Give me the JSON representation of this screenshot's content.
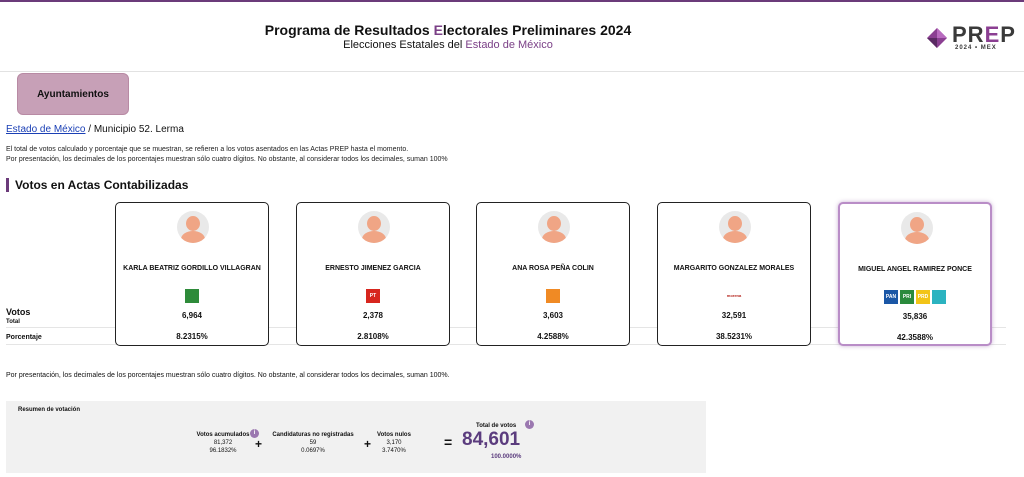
{
  "header": {
    "title_part1": "Programa de Resultados ",
    "title_accent": "E",
    "title_part2": "lectorales Preliminares 2024",
    "subtitle_part1": "Elecciones Estatales del ",
    "subtitle_accent": "Estado de México",
    "logo_text_a": "PR",
    "logo_text_e": "E",
    "logo_text_b": "P",
    "logo_sub": "2024 • MEX"
  },
  "tab": {
    "label": "Ayuntamientos"
  },
  "breadcrumb": {
    "link": "Estado de México",
    "separator": " / ",
    "current": "Municipio 52. Lerma"
  },
  "notes": {
    "line1": "El total de votos calculado y porcentaje que se muestran, se refieren a los votos asentados en las Actas PREP hasta el momento.",
    "line2": "Por presentación, los decimales de los porcentajes muestran sólo cuatro dígitos. No obstante, al considerar todos los decimales, suman 100%"
  },
  "section_title": "Votos en Actas Contabilizadas",
  "row_labels": {
    "votos": "Votos",
    "total": "Total",
    "porcentaje": "Porcentaje"
  },
  "candidates": [
    {
      "name": "KARLA BEATRIZ GORDILLO VILLAGRAN",
      "votes": "6,964",
      "pct": "8.2315%",
      "parties": [
        "pvem"
      ]
    },
    {
      "name": "ERNESTO JIMENEZ GARCIA",
      "votes": "2,378",
      "pct": "2.8108%",
      "parties": [
        "pt"
      ]
    },
    {
      "name": "ANA ROSA PEÑA COLIN",
      "votes": "3,603",
      "pct": "4.2588%",
      "parties": [
        "mc"
      ]
    },
    {
      "name": "MARGARITO GONZALEZ MORALES",
      "votes": "32,591",
      "pct": "38.5231%",
      "parties": [
        "morena"
      ]
    },
    {
      "name": "MIGUEL ANGEL RAMIREZ PONCE",
      "votes": "35,836",
      "pct": "42.3588%",
      "parties": [
        "pan",
        "pri",
        "prd",
        "nueva-alianza"
      ],
      "leading": true
    }
  ],
  "party_logos": {
    "pvem": {
      "label": "",
      "color": "#2e8b3a"
    },
    "pt": {
      "label": "PT",
      "color": "#d7261e"
    },
    "mc": {
      "label": "",
      "color": "#f08a24"
    },
    "morena": {
      "label": "morena",
      "color": "#b5261e"
    },
    "pan": {
      "label": "PAN",
      "color": "#1b57a6"
    },
    "pri": {
      "label": "PRI",
      "color": "#2a8a3c"
    },
    "prd": {
      "label": "PRD",
      "color": "#f2c417"
    },
    "nueva-alianza": {
      "label": "",
      "color": "#2bb3c0"
    }
  },
  "footer_note": "Por presentación, los decimales de los porcentajes muestran sólo cuatro dígitos. No obstante, al considerar todos los decimales, suman 100%.",
  "summary": {
    "title": "Resumen de votación",
    "acumulados": {
      "label": "Votos acumulados",
      "value": "81,372",
      "pct": "96.1832%"
    },
    "no_registradas": {
      "label": "Candidaturas no registradas",
      "value": "59",
      "pct": "0.0697%"
    },
    "nulos": {
      "label": "Votos nulos",
      "value": "3,170",
      "pct": "3.7470%"
    },
    "total": {
      "label": "Total de votos",
      "value": "84,601",
      "pct": "100.0000%"
    },
    "plus": "+",
    "equals": "=",
    "info_glyph": "i"
  },
  "colors": {
    "accent": "#6b3b7a",
    "leading_border": "#b98dc7",
    "tab_bg": "#c7a0b7"
  }
}
